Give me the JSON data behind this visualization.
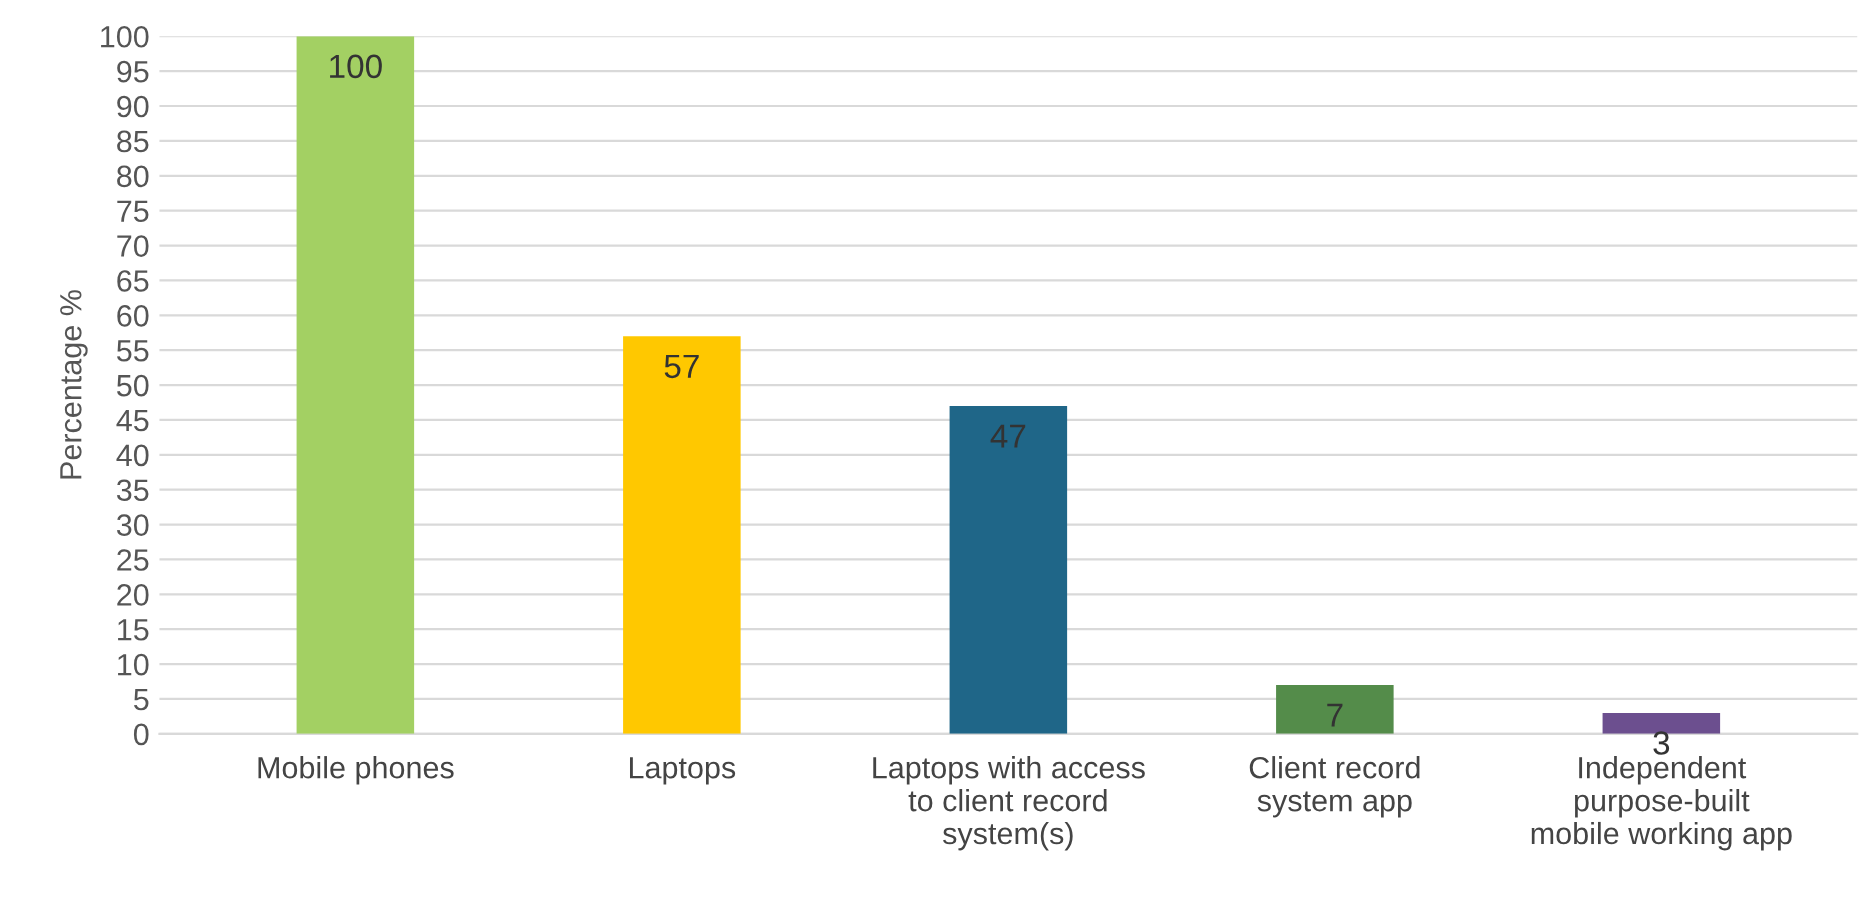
{
  "chart_data": {
    "type": "bar",
    "ylabel": "Percentage %",
    "categories": [
      "Mobile phones",
      "Laptops",
      "Laptops with access\nto client record\nsystem(s)",
      "Client record\nsystem app",
      "Independent\npurpose-built\nmobile working app"
    ],
    "values": [
      100,
      57,
      47,
      7,
      3
    ],
    "colors": [
      "#a3d063",
      "#ffc800",
      "#1f6688",
      "#548c4a",
      "#6c4f8f"
    ],
    "ylim": [
      0,
      100
    ],
    "yticks": [
      0,
      5,
      10,
      15,
      20,
      25,
      30,
      35,
      40,
      45,
      50,
      55,
      60,
      65,
      70,
      75,
      80,
      85,
      90,
      95,
      100
    ],
    "grid": "y",
    "data_labels": true
  }
}
